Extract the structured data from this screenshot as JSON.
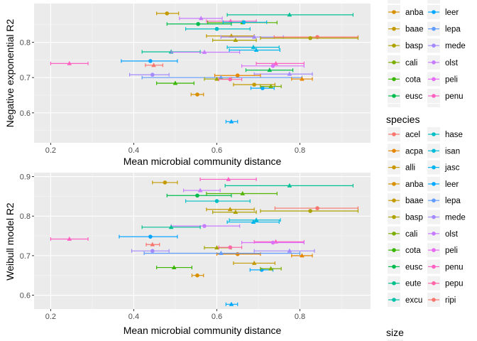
{
  "chart_data": [
    {
      "type": "scatter",
      "ylabel": "Negative exponential R2",
      "xlabel": "Mean microbial community distance",
      "xlim": [
        0.16,
        0.97
      ],
      "ylim": [
        0.515,
        0.91
      ],
      "xticks": [
        0.2,
        0.4,
        0.6,
        0.8
      ],
      "xtick_labels": [
        "0.2",
        "0.4",
        "0.6",
        "0.8"
      ],
      "yticks": [
        0.6,
        0.7,
        0.8
      ],
      "ytick_labels": [
        "0.6",
        "0.7",
        "0.8"
      ],
      "grid": true,
      "points": [
        {
          "c": "#C49A00",
          "s": "circle",
          "x": 0.48,
          "y": 0.882,
          "xmin": 0.455,
          "xmax": 0.508
        },
        {
          "c": "#00C094",
          "s": "triangle",
          "x": 0.775,
          "y": 0.878,
          "xmin": 0.625,
          "xmax": 0.928
        },
        {
          "c": "#C77CFF",
          "s": "triangle",
          "x": 0.562,
          "y": 0.868,
          "xmin": 0.51,
          "xmax": 0.613
        },
        {
          "c": "#FF61C3",
          "s": "triangle",
          "x": 0.633,
          "y": 0.86,
          "xmin": 0.575,
          "xmax": 0.695
        },
        {
          "c": "#53B400",
          "s": "triangle",
          "x": 0.662,
          "y": 0.856,
          "xmin": 0.578,
          "xmax": 0.745
        },
        {
          "c": "#00B6EB",
          "s": "circle",
          "x": 0.665,
          "y": 0.857,
          "xmin": 0.615,
          "xmax": 0.72
        },
        {
          "c": "#00BB4E",
          "s": "circle",
          "x": 0.555,
          "y": 0.852,
          "xmin": 0.48,
          "xmax": 0.635
        },
        {
          "c": "#00BFC4",
          "s": "circle",
          "x": 0.6,
          "y": 0.838,
          "xmin": 0.525,
          "xmax": 0.68
        },
        {
          "c": "#C49A00",
          "s": "triangle",
          "x": 0.635,
          "y": 0.818,
          "xmin": 0.575,
          "xmax": 0.69
        },
        {
          "c": "#A58AFF",
          "s": "triangle",
          "x": 0.69,
          "y": 0.815,
          "xmin": 0.61,
          "xmax": 0.76
        },
        {
          "c": "#F8766D",
          "s": "circle",
          "x": 0.842,
          "y": 0.815,
          "xmin": 0.738,
          "xmax": 0.94
        },
        {
          "c": "#AEA200",
          "s": "circle",
          "x": 0.825,
          "y": 0.812,
          "xmin": 0.705,
          "xmax": 0.94
        },
        {
          "c": "#AEA200",
          "s": "triangle",
          "x": 0.645,
          "y": 0.806,
          "xmin": 0.59,
          "xmax": 0.695
        },
        {
          "c": "#00BBDA",
          "s": "triangle",
          "x": 0.688,
          "y": 0.786,
          "xmin": 0.625,
          "xmax": 0.75
        },
        {
          "c": "#00B6EB",
          "s": "triangle",
          "x": 0.695,
          "y": 0.778,
          "xmin": 0.63,
          "xmax": 0.752
        },
        {
          "c": "#00C094",
          "s": "triangle",
          "x": 0.49,
          "y": 0.773,
          "xmin": 0.42,
          "xmax": 0.56
        },
        {
          "c": "#C77CFF",
          "s": "triangle",
          "x": 0.57,
          "y": 0.772,
          "xmin": 0.49,
          "xmax": 0.655
        },
        {
          "c": "#06A4FF",
          "s": "circle",
          "x": 0.44,
          "y": 0.747,
          "xmin": 0.37,
          "xmax": 0.505
        },
        {
          "c": "#FF61C3",
          "s": "triangle",
          "x": 0.245,
          "y": 0.74,
          "xmin": 0.2,
          "xmax": 0.29
        },
        {
          "c": "#F8766D",
          "s": "triangle",
          "x": 0.448,
          "y": 0.735,
          "xmin": 0.428,
          "xmax": 0.47
        },
        {
          "c": "#FF61C3",
          "s": "triangle",
          "x": 0.742,
          "y": 0.74,
          "xmin": 0.695,
          "xmax": 0.81
        },
        {
          "c": "#DB72FB",
          "s": "circle",
          "x": 0.735,
          "y": 0.733,
          "xmin": 0.66,
          "xmax": 0.81
        },
        {
          "c": "#00BB4E",
          "s": "triangle",
          "x": 0.727,
          "y": 0.721,
          "xmin": 0.67,
          "xmax": 0.783
        },
        {
          "c": "#A58AFF",
          "s": "triangle",
          "x": 0.775,
          "y": 0.71,
          "xmin": 0.69,
          "xmax": 0.83
        },
        {
          "c": "#A58AFF",
          "s": "circle",
          "x": 0.445,
          "y": 0.708,
          "xmin": 0.39,
          "xmax": 0.485
        },
        {
          "c": "#E58700",
          "s": "circle",
          "x": 0.65,
          "y": 0.706,
          "xmin": 0.595,
          "xmax": 0.705
        },
        {
          "c": "#619CFF",
          "s": "triangle",
          "x": 0.61,
          "y": 0.7,
          "xmin": 0.42,
          "xmax": 0.805
        },
        {
          "c": "#E58700",
          "s": "triangle",
          "x": 0.805,
          "y": 0.696,
          "xmin": 0.78,
          "xmax": 0.83
        },
        {
          "c": "#A3A500",
          "s": "triangle",
          "x": 0.6,
          "y": 0.696,
          "xmin": 0.57,
          "xmax": 0.635
        },
        {
          "c": "#FF66A8",
          "s": "circle",
          "x": 0.632,
          "y": 0.695,
          "xmin": 0.605,
          "xmax": 0.66
        },
        {
          "c": "#C49A00",
          "s": "circle",
          "x": 0.69,
          "y": 0.68,
          "xmin": 0.64,
          "xmax": 0.74
        },
        {
          "c": "#00A9FF",
          "s": "circle",
          "x": 0.71,
          "y": 0.67,
          "xmin": 0.682,
          "xmax": 0.738
        },
        {
          "c": "#7CAE00",
          "s": "triangle",
          "x": 0.73,
          "y": 0.675,
          "xmin": 0.705,
          "xmax": 0.755
        },
        {
          "c": "#39B600",
          "s": "triangle",
          "x": 0.5,
          "y": 0.684,
          "xmin": 0.455,
          "xmax": 0.545
        },
        {
          "c": "#D89000",
          "s": "circle",
          "x": 0.553,
          "y": 0.652,
          "xmin": 0.538,
          "xmax": 0.568
        },
        {
          "c": "#00A9FF",
          "s": "triangle",
          "x": 0.635,
          "y": 0.575,
          "xmin": 0.622,
          "xmax": 0.65
        }
      ]
    },
    {
      "type": "scatter",
      "ylabel": "Weibull model R2",
      "xlabel": "Mean microbial community distance",
      "xlim": [
        0.16,
        0.97
      ],
      "ylim": [
        0.565,
        0.91
      ],
      "xticks": [
        0.2,
        0.4,
        0.6,
        0.8
      ],
      "xtick_labels": [
        "0.2",
        "0.4",
        "0.6",
        "0.8"
      ],
      "yticks": [
        0.6,
        0.7,
        0.8,
        0.9
      ],
      "ytick_labels": [
        "0.6",
        "0.7",
        "0.8",
        "0.9"
      ],
      "grid": true,
      "points": [
        {
          "c": "#FF61C3",
          "s": "triangle",
          "x": 0.628,
          "y": 0.893,
          "xmin": 0.56,
          "xmax": 0.695
        },
        {
          "c": "#C49A00",
          "s": "circle",
          "x": 0.475,
          "y": 0.885,
          "xmin": 0.445,
          "xmax": 0.505
        },
        {
          "c": "#00C094",
          "s": "triangle",
          "x": 0.775,
          "y": 0.877,
          "xmin": 0.62,
          "xmax": 0.928
        },
        {
          "c": "#C77CFF",
          "s": "triangle",
          "x": 0.56,
          "y": 0.865,
          "xmin": 0.52,
          "xmax": 0.608
        },
        {
          "c": "#53B400",
          "s": "triangle",
          "x": 0.662,
          "y": 0.857,
          "xmin": 0.575,
          "xmax": 0.745
        },
        {
          "c": "#00BB4E",
          "s": "circle",
          "x": 0.553,
          "y": 0.852,
          "xmin": 0.48,
          "xmax": 0.635
        },
        {
          "c": "#00BFC4",
          "s": "circle",
          "x": 0.6,
          "y": 0.838,
          "xmin": 0.525,
          "xmax": 0.68
        },
        {
          "c": "#F8766D",
          "s": "circle",
          "x": 0.842,
          "y": 0.82,
          "xmin": 0.74,
          "xmax": 0.94
        },
        {
          "c": "#C49A00",
          "s": "triangle",
          "x": 0.632,
          "y": 0.817,
          "xmin": 0.575,
          "xmax": 0.69
        },
        {
          "c": "#AEA200",
          "s": "circle",
          "x": 0.825,
          "y": 0.813,
          "xmin": 0.705,
          "xmax": 0.94
        },
        {
          "c": "#AEA200",
          "s": "triangle",
          "x": 0.645,
          "y": 0.81,
          "xmin": 0.59,
          "xmax": 0.695
        },
        {
          "c": "#00BBDA",
          "s": "triangle",
          "x": 0.695,
          "y": 0.79,
          "xmin": 0.63,
          "xmax": 0.753
        },
        {
          "c": "#00B6EB",
          "s": "triangle",
          "x": 0.688,
          "y": 0.785,
          "xmin": 0.625,
          "xmax": 0.75
        },
        {
          "c": "#C77CFF",
          "s": "circle",
          "x": 0.57,
          "y": 0.775,
          "xmin": 0.49,
          "xmax": 0.655
        },
        {
          "c": "#00C094",
          "s": "triangle",
          "x": 0.49,
          "y": 0.772,
          "xmin": 0.42,
          "xmax": 0.56
        },
        {
          "c": "#06A4FF",
          "s": "circle",
          "x": 0.44,
          "y": 0.748,
          "xmin": 0.365,
          "xmax": 0.505
        },
        {
          "c": "#FF61C3",
          "s": "triangle",
          "x": 0.245,
          "y": 0.742,
          "xmin": 0.2,
          "xmax": 0.29
        },
        {
          "c": "#FF61C3",
          "s": "triangle",
          "x": 0.742,
          "y": 0.735,
          "xmin": 0.69,
          "xmax": 0.81
        },
        {
          "c": "#DB72FB",
          "s": "circle",
          "x": 0.735,
          "y": 0.733,
          "xmin": 0.66,
          "xmax": 0.81
        },
        {
          "c": "#F8766D",
          "s": "triangle",
          "x": 0.445,
          "y": 0.728,
          "xmin": 0.43,
          "xmax": 0.462
        },
        {
          "c": "#A58AFF",
          "s": "triangle",
          "x": 0.775,
          "y": 0.712,
          "xmin": 0.69,
          "xmax": 0.835
        },
        {
          "c": "#A58AFF",
          "s": "circle",
          "x": 0.445,
          "y": 0.712,
          "xmin": 0.395,
          "xmax": 0.485
        },
        {
          "c": "#E58700",
          "s": "triangle",
          "x": 0.805,
          "y": 0.7,
          "xmin": 0.78,
          "xmax": 0.83
        },
        {
          "c": "#E58700",
          "s": "circle",
          "x": 0.65,
          "y": 0.704,
          "xmin": 0.6,
          "xmax": 0.705
        },
        {
          "c": "#619CFF",
          "s": "triangle",
          "x": 0.61,
          "y": 0.706,
          "xmin": 0.425,
          "xmax": 0.8
        },
        {
          "c": "#A3A500",
          "s": "triangle",
          "x": 0.6,
          "y": 0.72,
          "xmin": 0.57,
          "xmax": 0.635
        },
        {
          "c": "#FF66A8",
          "s": "circle",
          "x": 0.632,
          "y": 0.721,
          "xmin": 0.605,
          "xmax": 0.66
        },
        {
          "c": "#C49A00",
          "s": "triangle",
          "x": 0.69,
          "y": 0.681,
          "xmin": 0.64,
          "xmax": 0.74
        },
        {
          "c": "#00A9FF",
          "s": "circle",
          "x": 0.708,
          "y": 0.664,
          "xmin": 0.68,
          "xmax": 0.735
        },
        {
          "c": "#7CAE00",
          "s": "triangle",
          "x": 0.73,
          "y": 0.667,
          "xmin": 0.705,
          "xmax": 0.755
        },
        {
          "c": "#39B600",
          "s": "triangle",
          "x": 0.497,
          "y": 0.67,
          "xmin": 0.455,
          "xmax": 0.54
        },
        {
          "c": "#D89000",
          "s": "circle",
          "x": 0.553,
          "y": 0.65,
          "xmin": 0.54,
          "xmax": 0.568
        },
        {
          "c": "#00A9FF",
          "s": "triangle",
          "x": 0.635,
          "y": 0.577,
          "xmin": 0.622,
          "xmax": 0.65
        }
      ]
    }
  ],
  "legend": {
    "panel1_items": [
      {
        "label": "anba",
        "color": "#D89000"
      },
      {
        "label": "baae",
        "color": "#C49A00"
      },
      {
        "label": "basp",
        "color": "#AEA200"
      },
      {
        "label": "cali",
        "color": "#7CAE00"
      },
      {
        "label": "cota",
        "color": "#39B600"
      },
      {
        "label": "eusc",
        "color": "#00BB4E"
      },
      {
        "label": "leer",
        "color": "#00A9FF"
      },
      {
        "label": "lepa",
        "color": "#619CFF"
      },
      {
        "label": "mede",
        "color": "#A58AFF"
      },
      {
        "label": "olst",
        "color": "#C77CFF"
      },
      {
        "label": "peli",
        "color": "#E76BF3"
      },
      {
        "label": "penu",
        "color": "#FF61C3"
      }
    ],
    "species_title": "species",
    "species_items": [
      {
        "label": "acel",
        "color": "#F8766D"
      },
      {
        "label": "acpa",
        "color": "#E58700"
      },
      {
        "label": "alli",
        "color": "#C99800"
      },
      {
        "label": "anba",
        "color": "#D89000"
      },
      {
        "label": "baae",
        "color": "#C49A00"
      },
      {
        "label": "basp",
        "color": "#AEA200"
      },
      {
        "label": "cali",
        "color": "#7CAE00"
      },
      {
        "label": "cota",
        "color": "#39B600"
      },
      {
        "label": "eusc",
        "color": "#00BB4E"
      },
      {
        "label": "eute",
        "color": "#00C08B"
      },
      {
        "label": "excu",
        "color": "#00C1A9"
      },
      {
        "label": "hase",
        "color": "#00BFC4"
      },
      {
        "label": "isan",
        "color": "#00BBDA"
      },
      {
        "label": "jasc",
        "color": "#00B4EF"
      },
      {
        "label": "leer",
        "color": "#00A9FF"
      },
      {
        "label": "lepa",
        "color": "#619CFF"
      },
      {
        "label": "mede",
        "color": "#A58AFF"
      },
      {
        "label": "olst",
        "color": "#C77CFF"
      },
      {
        "label": "peli",
        "color": "#E76BF3"
      },
      {
        "label": "penu",
        "color": "#FF61C3"
      },
      {
        "label": "pepu",
        "color": "#FF66A8"
      },
      {
        "label": "ripi",
        "color": "#F8766D"
      }
    ],
    "size_title": "size"
  }
}
